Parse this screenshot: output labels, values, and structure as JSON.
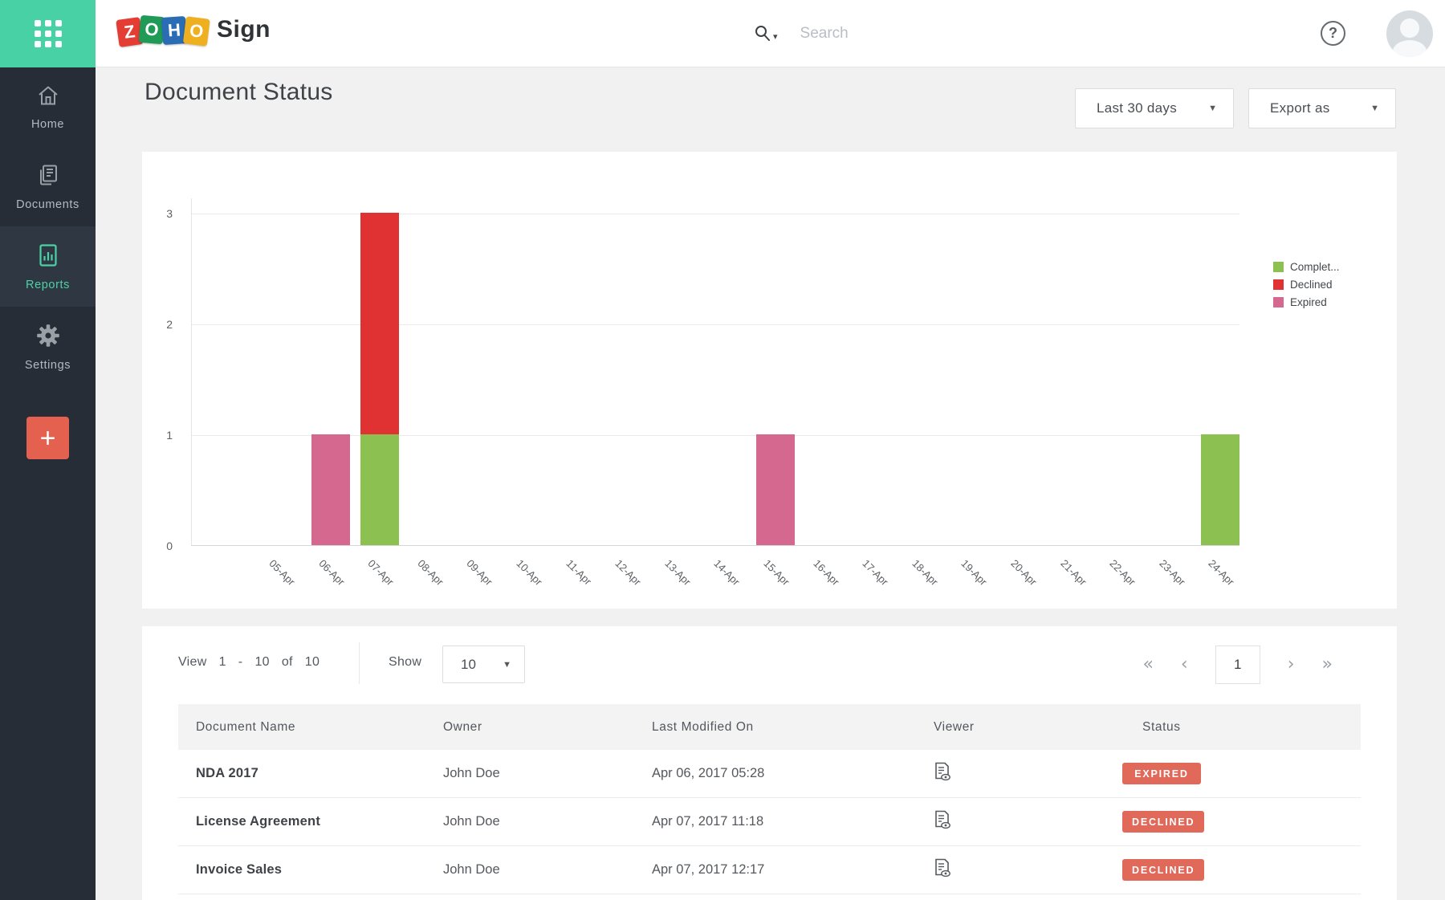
{
  "header": {
    "brand_tiles": [
      {
        "letter": "Z",
        "color": "#e43d34"
      },
      {
        "letter": "O",
        "color": "#1f9b57"
      },
      {
        "letter": "H",
        "color": "#2a6db4"
      },
      {
        "letter": "O",
        "color": "#efb01f"
      }
    ],
    "product": "Sign",
    "search": {
      "placeholder": "Search"
    },
    "help_label": "?"
  },
  "sidebar": {
    "items": [
      {
        "label": "Home",
        "icon": "home-icon",
        "active": false
      },
      {
        "label": "Documents",
        "icon": "documents-icon",
        "active": false
      },
      {
        "label": "Reports",
        "icon": "reports-icon",
        "active": true
      },
      {
        "label": "Settings",
        "icon": "settings-icon",
        "active": false
      }
    ],
    "add_button_label": "+"
  },
  "page": {
    "title": "Document Status",
    "range_dropdown": "Last 30 days",
    "export_dropdown": "Export as"
  },
  "chart_data": {
    "type": "bar",
    "stacked": true,
    "grid": true,
    "legend_position": "right",
    "title": "",
    "xlabel": "",
    "ylabel": "",
    "ylim": [
      0,
      3
    ],
    "yticks": [
      0,
      1,
      2,
      3
    ],
    "categories": [
      "05-Apr",
      "06-Apr",
      "07-Apr",
      "08-Apr",
      "09-Apr",
      "10-Apr",
      "11-Apr",
      "12-Apr",
      "13-Apr",
      "14-Apr",
      "15-Apr",
      "16-Apr",
      "17-Apr",
      "18-Apr",
      "19-Apr",
      "20-Apr",
      "21-Apr",
      "22-Apr",
      "23-Apr",
      "24-Apr"
    ],
    "series": [
      {
        "name": "Completed",
        "legend_label": "Complet...",
        "color": "#8cc152",
        "values": [
          0,
          0,
          1,
          0,
          0,
          0,
          0,
          0,
          0,
          0,
          0,
          0,
          0,
          0,
          0,
          0,
          0,
          0,
          0,
          1
        ]
      },
      {
        "name": "Declined",
        "legend_label": "Declined",
        "color": "#e03233",
        "values": [
          0,
          0,
          2,
          0,
          0,
          0,
          0,
          0,
          0,
          0,
          0,
          0,
          0,
          0,
          0,
          0,
          0,
          0,
          0,
          0
        ]
      },
      {
        "name": "Expired",
        "legend_label": "Expired",
        "color": "#d4688e",
        "values": [
          0,
          1,
          0,
          0,
          0,
          0,
          0,
          0,
          0,
          0,
          1,
          0,
          0,
          0,
          0,
          0,
          0,
          0,
          0,
          0
        ]
      }
    ]
  },
  "table_controls": {
    "view_parts": [
      "View",
      "1",
      "-",
      "10",
      "of",
      "10"
    ],
    "show_label": "Show",
    "show_value": "10",
    "pagination": {
      "first": "«",
      "prev": "‹",
      "page": "1",
      "next": "›",
      "last": "»"
    }
  },
  "table": {
    "columns": [
      "Document Name",
      "Owner",
      "Last Modified On",
      "Viewer",
      "Status"
    ],
    "rows": [
      {
        "name": "NDA 2017",
        "owner": "John Doe",
        "modified": "Apr 06, 2017 05:28",
        "status": "EXPIRED"
      },
      {
        "name": "License Agreement",
        "owner": "John Doe",
        "modified": "Apr 07, 2017 11:18",
        "status": "DECLINED"
      },
      {
        "name": "Invoice Sales",
        "owner": "John Doe",
        "modified": "Apr 07, 2017 12:17",
        "status": "DECLINED"
      }
    ]
  },
  "colors": {
    "accent_teal": "#47d1a5",
    "sidebar_bg": "#262d36",
    "sidebar_active_bg": "#2f3842",
    "add_button": "#e4614f",
    "status_chip": "#e0695a",
    "page_bg": "#f1f1f1"
  }
}
